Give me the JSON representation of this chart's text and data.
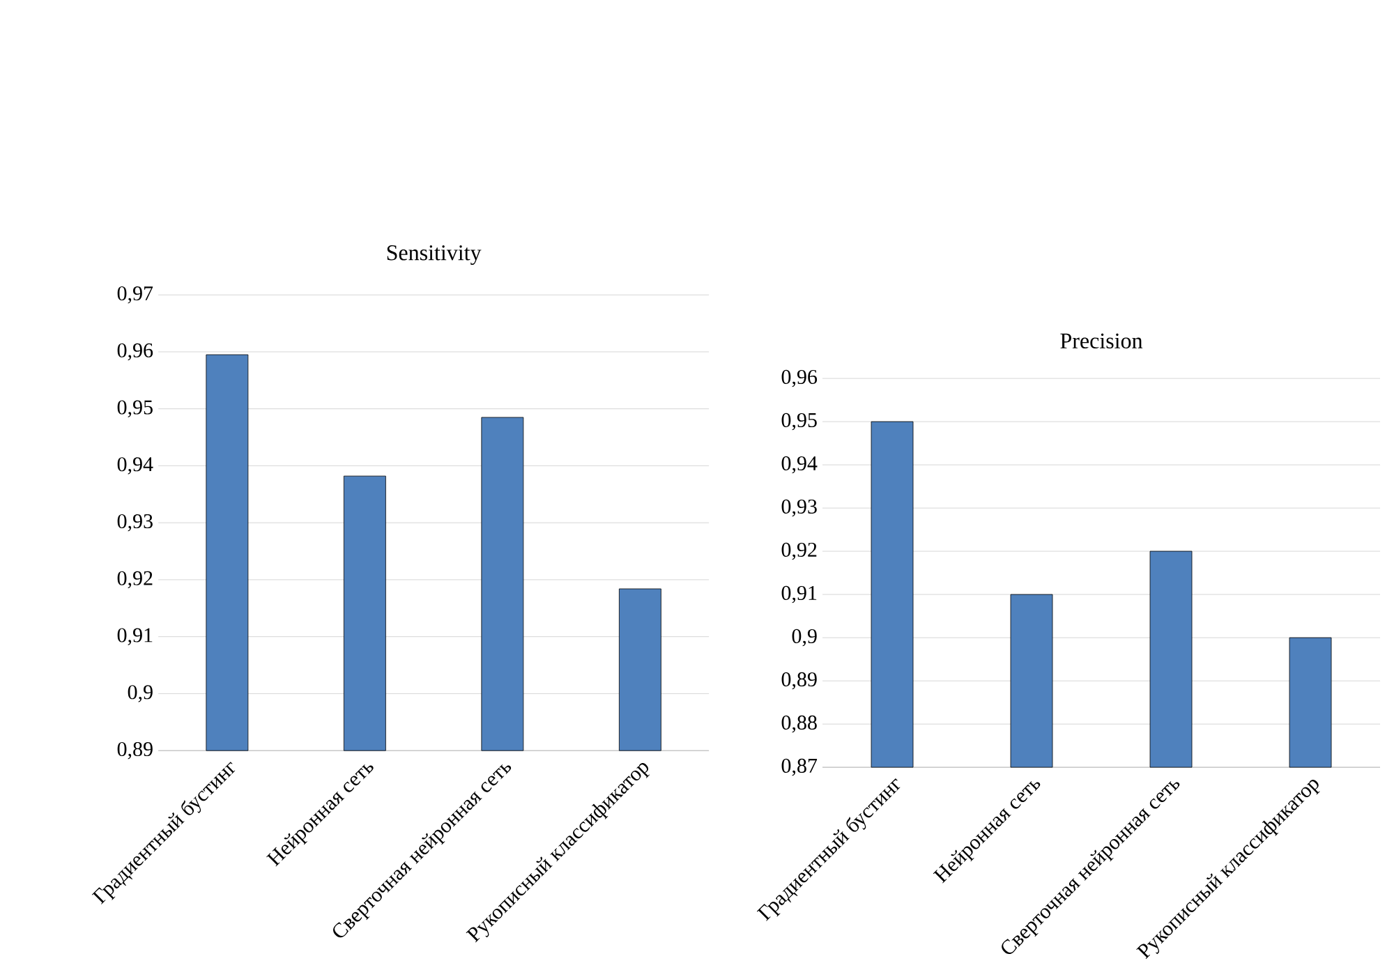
{
  "chart_data": [
    {
      "type": "bar",
      "title": "Sensitivity",
      "categories": [
        "Градиентный бустинг",
        "Нейронная сеть",
        "Сверточная нейронная сеть",
        "Рукописный классификатор"
      ],
      "values": [
        0.9595,
        0.9382,
        0.9485,
        0.9184
      ],
      "color": "#4f81bd",
      "ylim": [
        0.89,
        0.97
      ],
      "yticks": [
        {
          "value": 0.89,
          "label": "0,89"
        },
        {
          "value": 0.9,
          "label": "0,9"
        },
        {
          "value": 0.91,
          "label": "0,91"
        },
        {
          "value": 0.92,
          "label": "0,92"
        },
        {
          "value": 0.93,
          "label": "0,93"
        },
        {
          "value": 0.94,
          "label": "0,94"
        },
        {
          "value": 0.95,
          "label": "0,95"
        },
        {
          "value": 0.96,
          "label": "0,96"
        },
        {
          "value": 0.97,
          "label": "0,97"
        }
      ],
      "grid": "y"
    },
    {
      "type": "bar",
      "title": "Precision",
      "categories": [
        "Градиентный бустинг",
        "Нейронная сеть",
        "Сверточная нейронная сеть",
        "Рукописный классификатор"
      ],
      "values": [
        0.95,
        0.91,
        0.92,
        0.9
      ],
      "color": "#4f81bd",
      "ylim": [
        0.87,
        0.96
      ],
      "yticks": [
        {
          "value": 0.87,
          "label": "0,87"
        },
        {
          "value": 0.88,
          "label": "0,88"
        },
        {
          "value": 0.89,
          "label": "0,89"
        },
        {
          "value": 0.9,
          "label": "0,9"
        },
        {
          "value": 0.91,
          "label": "0,91"
        },
        {
          "value": 0.92,
          "label": "0,92"
        },
        {
          "value": 0.93,
          "label": "0,93"
        },
        {
          "value": 0.94,
          "label": "0,94"
        },
        {
          "value": 0.95,
          "label": "0,95"
        },
        {
          "value": 0.96,
          "label": "0,96"
        }
      ],
      "grid": "y"
    }
  ]
}
